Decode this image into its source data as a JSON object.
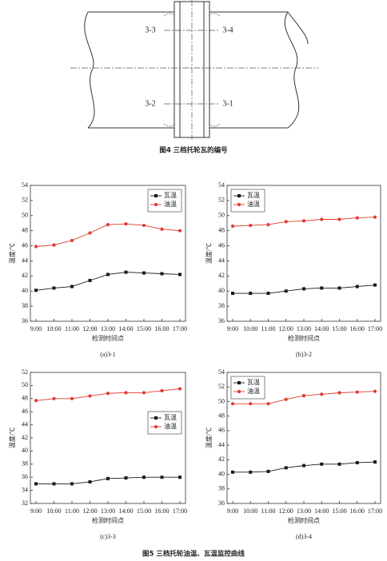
{
  "figure4": {
    "labels": [
      "3-3",
      "3-4",
      "3-2",
      "3-1"
    ],
    "caption": "图4 三档托轮瓦的编号"
  },
  "chart_data": [
    {
      "type": "line",
      "caption": "(a)3-1",
      "xlabel": "检测时间点",
      "ylabel": "温度/℃",
      "categories": [
        "9:00",
        "10:00",
        "11:00",
        "12:00",
        "13:00",
        "14:00",
        "15:00",
        "16:00",
        "17:00"
      ],
      "series": [
        {
          "name": "瓦温",
          "color": "#1a1a1a",
          "values": [
            40.1,
            40.4,
            40.6,
            41.4,
            42.2,
            42.5,
            42.4,
            42.3,
            42.2
          ]
        },
        {
          "name": "油温",
          "color": "#e03a2f",
          "values": [
            45.9,
            46.1,
            46.7,
            47.7,
            48.8,
            48.9,
            48.7,
            48.2,
            48.0
          ]
        }
      ],
      "ylim": [
        36,
        54
      ],
      "yticks": [
        36,
        38,
        40,
        42,
        44,
        46,
        48,
        50,
        52,
        54
      ],
      "legend": "upper right"
    },
    {
      "type": "line",
      "caption": "(b)3-2",
      "xlabel": "检测时间点",
      "ylabel": "温度/℃",
      "categories": [
        "9:00",
        "10:00",
        "11:00",
        "12:00",
        "13:00",
        "14:00",
        "15:00",
        "16:00",
        "17:00"
      ],
      "series": [
        {
          "name": "瓦温",
          "color": "#1a1a1a",
          "values": [
            39.7,
            39.7,
            39.7,
            40.0,
            40.3,
            40.4,
            40.4,
            40.6,
            40.8
          ]
        },
        {
          "name": "油温",
          "color": "#e03a2f",
          "values": [
            48.6,
            48.7,
            48.8,
            49.2,
            49.3,
            49.5,
            49.5,
            49.7,
            49.8
          ]
        }
      ],
      "ylim": [
        36,
        54
      ],
      "yticks": [
        36,
        38,
        40,
        42,
        44,
        46,
        48,
        50,
        52,
        54
      ],
      "legend": "upper left"
    },
    {
      "type": "line",
      "caption": "(c)3-3",
      "xlabel": "检测时间点",
      "ylabel": "温度/℃",
      "categories": [
        "9:00",
        "10:00",
        "11:00",
        "12:00",
        "13:00",
        "14:00",
        "15:00",
        "16:00",
        "17:00"
      ],
      "series": [
        {
          "name": "瓦温",
          "color": "#1a1a1a",
          "values": [
            35.0,
            35.0,
            35.0,
            35.3,
            35.8,
            35.9,
            36.0,
            36.0,
            36.0
          ]
        },
        {
          "name": "油温",
          "color": "#e03a2f",
          "values": [
            47.7,
            48.0,
            48.0,
            48.4,
            48.8,
            48.9,
            48.9,
            49.2,
            49.5
          ]
        }
      ],
      "ylim": [
        32,
        52
      ],
      "yticks": [
        32,
        34,
        36,
        38,
        40,
        42,
        44,
        46,
        48,
        50,
        52
      ],
      "legend": "center right"
    },
    {
      "type": "line",
      "caption": "(d)3-4",
      "xlabel": "检测时间点",
      "ylabel": "温度/℃",
      "categories": [
        "9:00",
        "10:00",
        "11:00",
        "12:00",
        "13:00",
        "14:00",
        "15:00",
        "16:00",
        "17:00"
      ],
      "series": [
        {
          "name": "瓦温",
          "color": "#1a1a1a",
          "values": [
            40.3,
            40.3,
            40.4,
            40.9,
            41.2,
            41.4,
            41.4,
            41.6,
            41.7
          ]
        },
        {
          "name": "油温",
          "color": "#e03a2f",
          "values": [
            49.7,
            49.7,
            49.7,
            50.3,
            50.8,
            51.0,
            51.2,
            51.3,
            51.4
          ]
        }
      ],
      "ylim": [
        36,
        54
      ],
      "yticks": [
        36,
        38,
        40,
        42,
        44,
        46,
        48,
        50,
        52,
        54
      ],
      "legend": "upper left"
    }
  ],
  "figure5_caption": "图5 三档托轮油温、瓦温监控曲线"
}
